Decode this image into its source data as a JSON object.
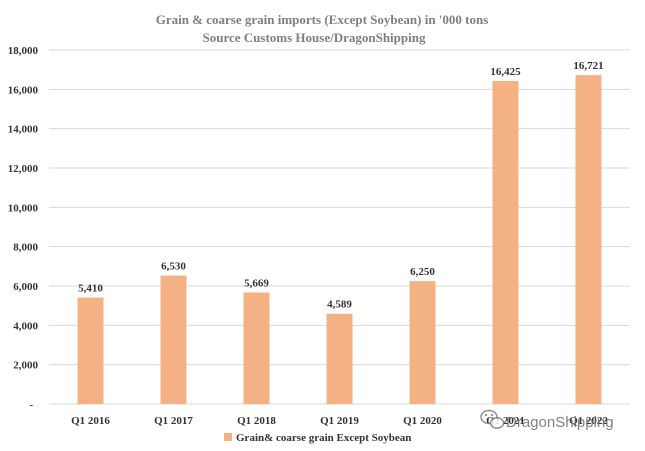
{
  "chart_data": {
    "type": "bar",
    "title": "Grain & coarse grain imports (Except Soybean) in '000 tons",
    "subtitle": "Source Customs House/DragonShipping",
    "categories": [
      "Q1 2016",
      "Q1 2017",
      "Q1 2018",
      "Q1 2019",
      "Q1 2020",
      "Q1 2021",
      "Q1 2022"
    ],
    "series": [
      {
        "name": "Grain& coarse grain Except Soybean",
        "values": [
          5410,
          6530,
          5669,
          4589,
          6250,
          16425,
          16721
        ],
        "data_labels": [
          "5,410",
          "6,530",
          "5,669",
          "4,589",
          "6,250",
          "16,425",
          "16,721"
        ]
      }
    ],
    "y_ticks": [
      "-",
      "2,000",
      "4,000",
      "6,000",
      "8,000",
      "10,000",
      "12,000",
      "14,000",
      "16,000",
      "18,000"
    ],
    "ylim": [
      0,
      18000
    ],
    "grid": true,
    "legend_position": "bottom",
    "colors": {
      "bar": "#f4b183",
      "grid": "#d9d9d9",
      "title": "#7f7f7f",
      "text": "#333333"
    }
  },
  "watermark": {
    "text": "DragonShipping",
    "icon": "wechat-icon"
  }
}
